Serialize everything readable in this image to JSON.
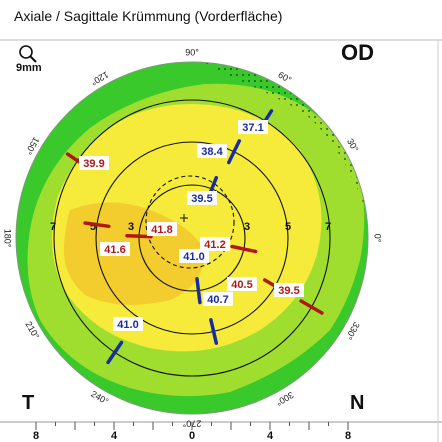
{
  "title": "Axiale / Sagittale Krümmung (Vorderfläche)",
  "zoom_label": "9mm",
  "eye": "OD",
  "corners": {
    "left": "T",
    "right": "N"
  },
  "angle_labels": [
    "0°",
    "30°",
    "60°",
    "90°",
    "120°",
    "150°",
    "180°",
    "210°",
    "240°",
    "270°",
    "300°",
    "330°"
  ],
  "ring_labels": [
    "3",
    "5",
    "7"
  ],
  "ruler_labels": [
    "8",
    "4",
    "0",
    "4",
    "8"
  ],
  "colors": {
    "steep": "#b01818",
    "flat": "#1a2d9c",
    "yellow_zone": "#f6ea3a",
    "green_zone": "#39c92b"
  },
  "flat_meridian": [
    {
      "value": "39.5",
      "ring": 1
    },
    {
      "value": "38.4",
      "ring": 2
    },
    {
      "value": "37.1",
      "ring": 3
    },
    {
      "value": "41.0",
      "ring": 1
    },
    {
      "value": "40.7",
      "ring": 2
    },
    {
      "value": "41.0",
      "ring": 3
    }
  ],
  "steep_meridian": [
    {
      "value": "41.8",
      "ring": 1
    },
    {
      "value": "41.6",
      "ring": 2
    },
    {
      "value": "39.9",
      "ring": 3
    },
    {
      "value": "41.2",
      "ring": 1
    },
    {
      "value": "40.5",
      "ring": 2
    },
    {
      "value": "39.5",
      "ring": 3
    }
  ]
}
